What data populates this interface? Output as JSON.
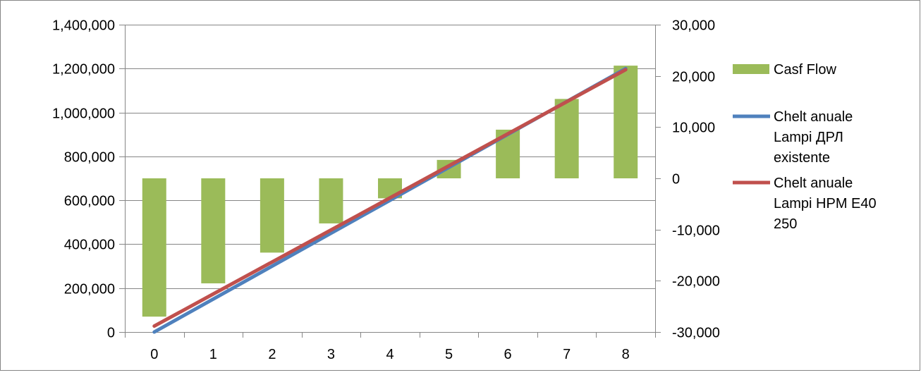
{
  "chart_data": {
    "type": "bar",
    "categories": [
      "0",
      "1",
      "2",
      "3",
      "4",
      "5",
      "6",
      "7",
      "8"
    ],
    "series": [
      {
        "name": "Casf Flow",
        "type": "bar",
        "axis": "right",
        "color": "#9bbb59",
        "values": [
          -27000,
          -20500,
          -14500,
          -8800,
          -3900,
          3600,
          9500,
          15500,
          22000
        ]
      },
      {
        "name": "Chelt anuale Lampi ДРЛ existente",
        "type": "line",
        "axis": "left",
        "color": "#4f81bd",
        "values": [
          0,
          150000,
          300000,
          450000,
          600000,
          750000,
          900000,
          1050000,
          1200000
        ]
      },
      {
        "name": "Chelt anuale Lampi HPM E40 250",
        "type": "line",
        "axis": "left",
        "color": "#c0504d",
        "values": [
          27000,
          173000,
          319000,
          465000,
          611000,
          757000,
          903000,
          1049000,
          1195000
        ]
      }
    ],
    "y_left": {
      "min": 0,
      "max": 1400000,
      "step": 200000,
      "tick_labels": [
        "0",
        "200,000",
        "400,000",
        "600,000",
        "800,000",
        "1,000,000",
        "1,200,000",
        "1,400,000"
      ]
    },
    "y_right": {
      "min": -30000,
      "max": 30000,
      "step": 10000,
      "tick_labels": [
        "-30,000",
        "-20,000",
        "-10,000",
        "0",
        "10,000",
        "20,000",
        "30,000"
      ]
    },
    "grid": true,
    "legend_position": "right",
    "legend": [
      {
        "lines": [
          "Casf Flow"
        ],
        "marker": "bar",
        "color": "#9bbb59"
      },
      {
        "lines": [
          "Chelt anuale",
          "Lampi ДРЛ",
          "existente"
        ],
        "marker": "line",
        "color": "#4f81bd"
      },
      {
        "lines": [
          "Chelt anuale",
          "Lampi HPM E40",
          "250"
        ],
        "marker": "line",
        "color": "#c0504d"
      }
    ]
  }
}
